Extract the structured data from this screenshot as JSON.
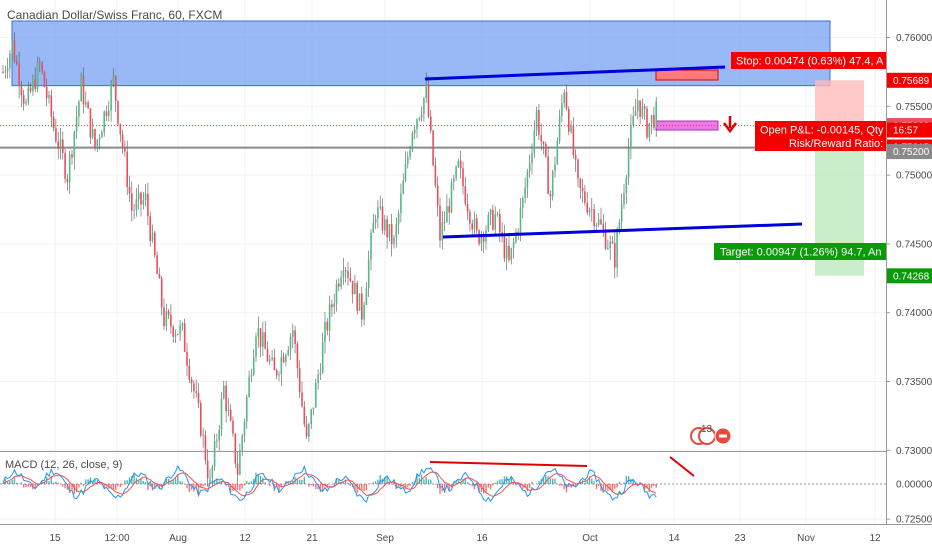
{
  "header": {
    "title": "Canadian Dollar/Swiss Franc, 60, FXCM",
    "macd_label": "MACD (12, 26, close, 9)"
  },
  "colors": {
    "up": "#53b987",
    "down": "#eb4d5c",
    "wick": "#4a4a4a",
    "trendline": "#0000dd",
    "divergence": "#e00000",
    "supply_zone": "#6c9bf2",
    "stop_zone": "#ffbcbc",
    "target_zone": "#bde9bd",
    "stop_tag": "#f50000",
    "target_tag": "#0b9a09",
    "current_tag": "#4a4a4a",
    "macd": "#2196f3",
    "signal": "#ef5350"
  },
  "annotations": {
    "stop_label": "Stop: 0.00474 (0.63%) 47.4, A",
    "target_label": "Target: 0.00947 (1.26%) 94.7, An",
    "pnl_label": "Open P&L: -0.00145, Qty",
    "rr_label": "Risk/Reward Ratio:",
    "event_count": "13"
  },
  "price_tags": {
    "stop": "0.75689",
    "entry": "0.75360",
    "timer": "16:57",
    "current": "0.75215",
    "level": "0.75200",
    "target": "0.74268"
  },
  "chart_data": {
    "type": "candlestick",
    "title": "Canadian Dollar/Swiss Franc, 60, FXCM",
    "y_range": [
      0.7247,
      0.7621
    ],
    "y_ticks": [
      "0.76000",
      "0.75500",
      "0.75000",
      "0.74500",
      "0.74000",
      "0.73500",
      "0.73000",
      "0.72500"
    ],
    "x_ticks": [
      "15",
      "12:00",
      "Aug",
      "12",
      "21",
      "Sep",
      "16",
      "Oct",
      "14",
      "23",
      "Nov",
      "12"
    ],
    "price_path": [
      [
        0,
        0.7575
      ],
      [
        4,
        0.7595
      ],
      [
        10,
        0.755
      ],
      [
        16,
        0.758
      ],
      [
        22,
        0.7535
      ],
      [
        28,
        0.75
      ],
      [
        34,
        0.7565
      ],
      [
        40,
        0.752
      ],
      [
        48,
        0.7568
      ],
      [
        56,
        0.7475
      ],
      [
        62,
        0.7482
      ],
      [
        70,
        0.7395
      ],
      [
        78,
        0.7385
      ],
      [
        86,
        0.7318
      ],
      [
        90,
        0.7275
      ],
      [
        96,
        0.7345
      ],
      [
        102,
        0.7285
      ],
      [
        110,
        0.739
      ],
      [
        118,
        0.7355
      ],
      [
        126,
        0.7388
      ],
      [
        132,
        0.7305
      ],
      [
        140,
        0.7385
      ],
      [
        148,
        0.744
      ],
      [
        156,
        0.74
      ],
      [
        162,
        0.7475
      ],
      [
        170,
        0.745
      ],
      [
        178,
        0.7535
      ],
      [
        184,
        0.756
      ],
      [
        190,
        0.7455
      ],
      [
        198,
        0.7505
      ],
      [
        206,
        0.7455
      ],
      [
        214,
        0.747
      ],
      [
        220,
        0.7435
      ],
      [
        226,
        0.748
      ],
      [
        232,
        0.7545
      ],
      [
        238,
        0.7485
      ],
      [
        244,
        0.7565
      ],
      [
        250,
        0.749
      ],
      [
        256,
        0.7475
      ],
      [
        262,
        0.7455
      ],
      [
        266,
        0.744
      ],
      [
        272,
        0.752
      ],
      [
        276,
        0.7555
      ],
      [
        280,
        0.7535
      ],
      [
        284,
        0.7545
      ]
    ],
    "levels": {
      "supply_zone": [
        0.7565,
        0.7612
      ],
      "stop": 0.75689,
      "entry": 0.7536,
      "current": 0.75215,
      "horizontal": 0.752,
      "target": 0.74268
    },
    "trendlines": [
      {
        "name": "upper",
        "from": [
          182,
          0.7568
        ],
        "to": [
          333,
          0.7568
        ]
      },
      {
        "name": "lower",
        "from": [
          184,
          0.7434
        ],
        "to": [
          333,
          0.7438
        ]
      }
    ],
    "macd": {
      "label": "MACD (12, 26, close, 9)",
      "y_ticks": [
        "0.00000"
      ]
    }
  }
}
